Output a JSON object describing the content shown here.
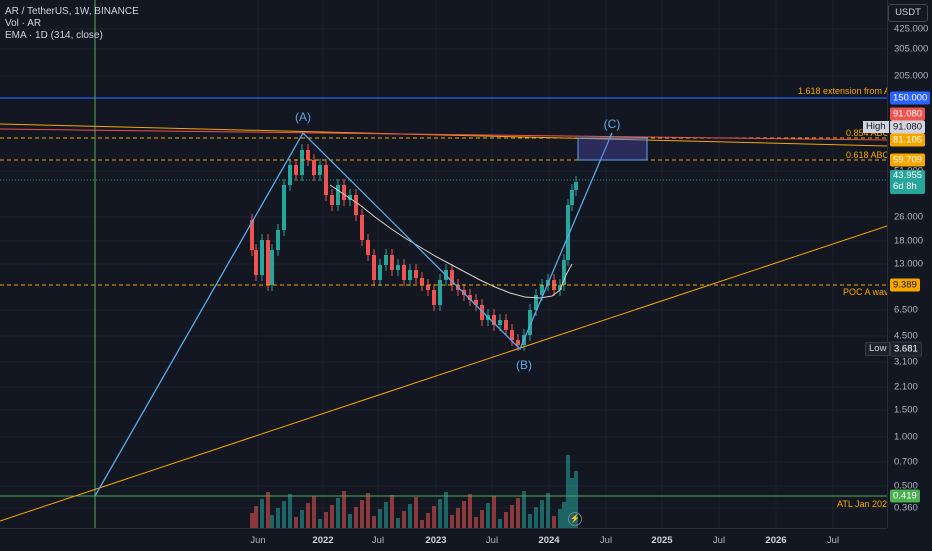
{
  "legend": {
    "symbol": "AR / TetherUS, 1W, BINANCE",
    "vol": "Vol · AR",
    "ema": "EMA · 1D (314, close)"
  },
  "price_axis": {
    "unit": "USDT",
    "ticks": [
      "425.000",
      "305.000",
      "205.000",
      "150.000",
      "91.080",
      "81.105",
      "59.709",
      "51.000",
      "43.955",
      "26.000",
      "18.000",
      "13.000",
      "9.389",
      "6.500",
      "4.500",
      "3.100",
      "2.100",
      "1.500",
      "1.000",
      "0.700",
      "0.500",
      "0.419",
      "0.360"
    ]
  },
  "time_axis": {
    "labels": [
      "Jun",
      "2022",
      "Jul",
      "2023",
      "Jul",
      "2024",
      "Jul",
      "2025",
      "Jul",
      "2026",
      "Jul"
    ]
  },
  "price_tags": {
    "p150": "150.000",
    "p91": "91.080",
    "high_label": "High",
    "high_val": "91.080",
    "p81": "81.105",
    "p59": "59.709",
    "current": "43.955",
    "countdown": "6d 8h",
    "poc": "9.389",
    "low_label": "Low",
    "low_val": "3.681",
    "atl": "0.419"
  },
  "annotations": {
    "ext": "1.618 extension from ATL",
    "abc854": "0.854 ABC",
    "abc618": "0.618 ABC",
    "poc": "POC A wave",
    "atl": "ATL Jan 2020"
  },
  "waves": {
    "a": "(A)",
    "b": "(B)",
    "c": "(C)"
  },
  "colors": {
    "blue_line": "#2962ff",
    "orange": "#f7a600",
    "wave": "#5aa9e6",
    "up": "#26a69a",
    "down": "#ef5350"
  },
  "icons": {
    "replay": "lightning-icon"
  }
}
